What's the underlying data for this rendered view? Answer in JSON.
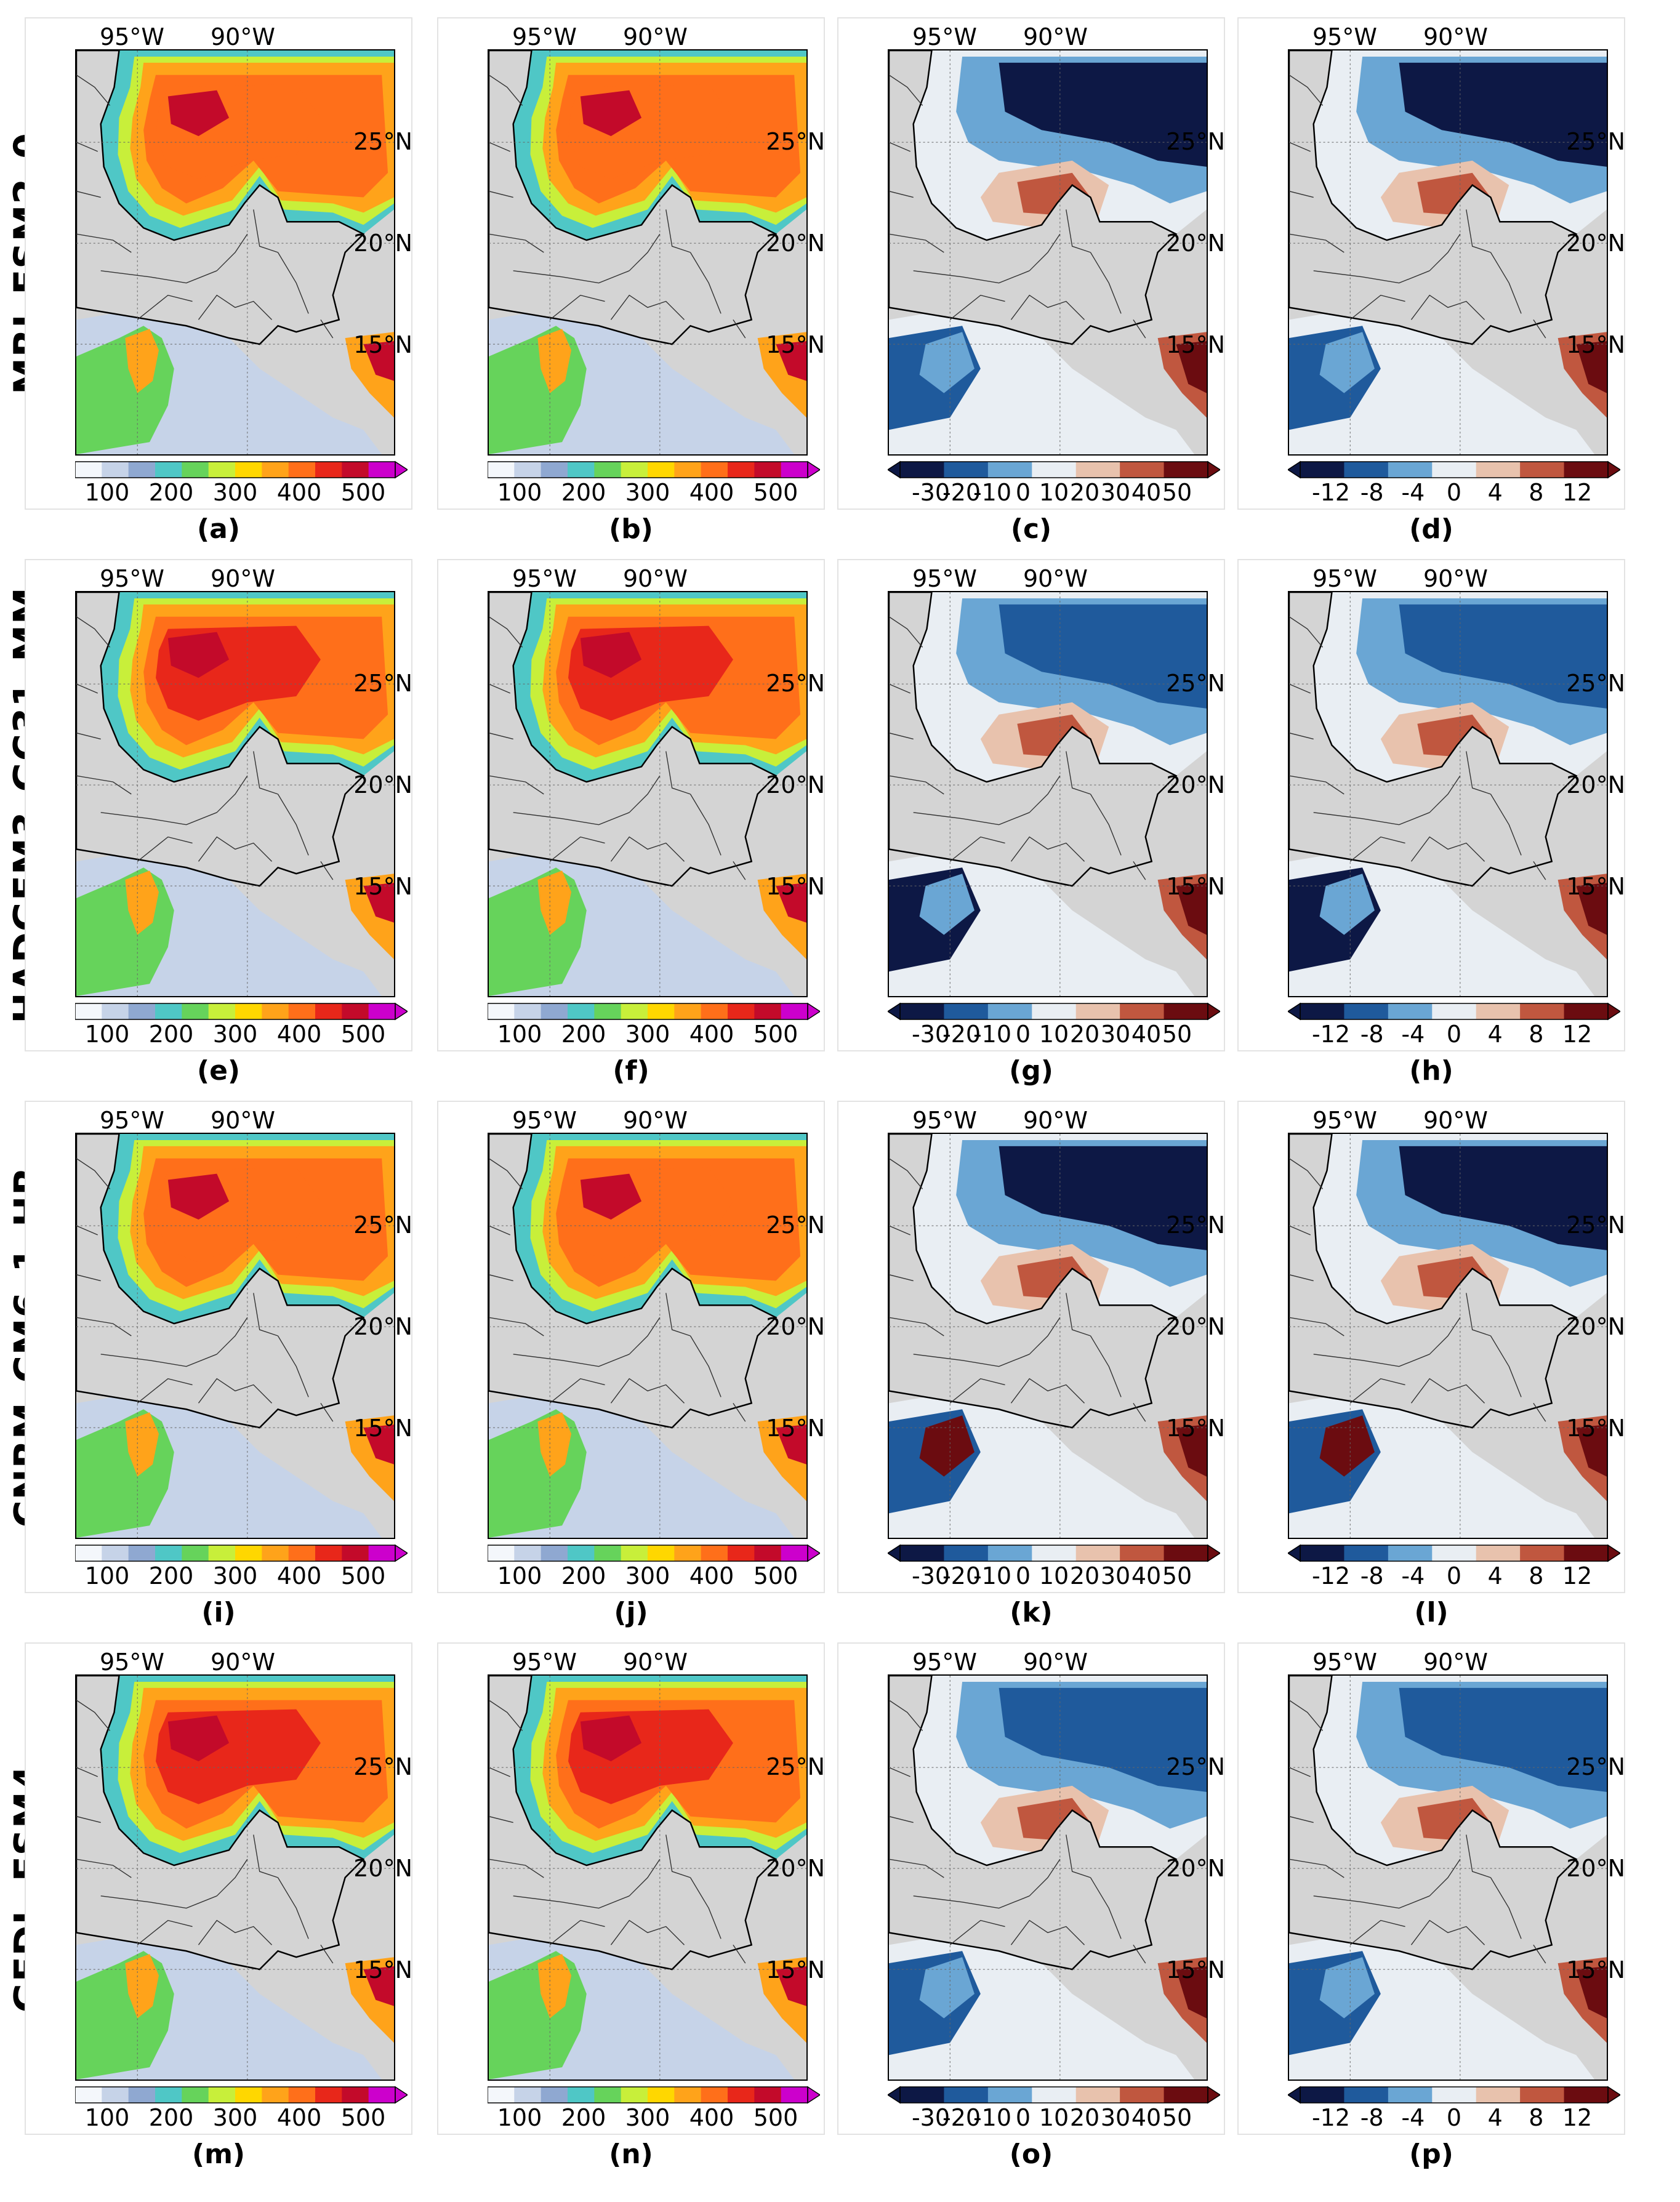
{
  "rows": [
    {
      "model": "MRI_ESM2_0",
      "letters": [
        "(a)",
        "(b)",
        "(c)",
        "(d)"
      ]
    },
    {
      "model": "HADGEM3_GC31_MM",
      "letters": [
        "(e)",
        "(f)",
        "(g)",
        "(h)"
      ]
    },
    {
      "model": "CNRM_CM6_1_HR",
      "letters": [
        "(i)",
        "(j)",
        "(k)",
        "(l)"
      ]
    },
    {
      "model": "GFDL_ESM4",
      "letters": [
        "(m)",
        "(n)",
        "(o)",
        "(p)"
      ]
    }
  ],
  "lon_labels": [
    "95°W",
    "90°W"
  ],
  "lat_labels": [
    "25°N",
    "20°N",
    "15°N"
  ],
  "colorbars": {
    "absolute": {
      "ticks": [
        "100",
        "200",
        "300",
        "400",
        "500"
      ],
      "extend": "max",
      "vmin": 50,
      "vmax": 550
    },
    "change": {
      "ticks": [
        "-30",
        "-20",
        "-10",
        "0",
        "10",
        "20",
        "30",
        "40",
        "50"
      ],
      "extend": "both",
      "vmin": -40,
      "vmax": 60
    },
    "pct_change": {
      "ticks": [
        "-12",
        "-8",
        "-4",
        "0",
        "4",
        "8",
        "12"
      ],
      "extend": "both",
      "vmin": -15,
      "vmax": 15
    }
  },
  "colors": {
    "absolute": [
      "#f4f7fb",
      "#c6d3e8",
      "#8fa8d1",
      "#4fc7c6",
      "#66d35b",
      "#c8ef3a",
      "#ffd700",
      "#ffa31a",
      "#ff6f1a",
      "#e8271a",
      "#c30a2a",
      "#cc00cc"
    ],
    "diverging": [
      "#0d1845",
      "#1f5a9c",
      "#6aa6d4",
      "#e9eef3",
      "#e8c2ad",
      "#c0573f",
      "#6b0c10"
    ],
    "land": "#d4d4d4"
  }
}
